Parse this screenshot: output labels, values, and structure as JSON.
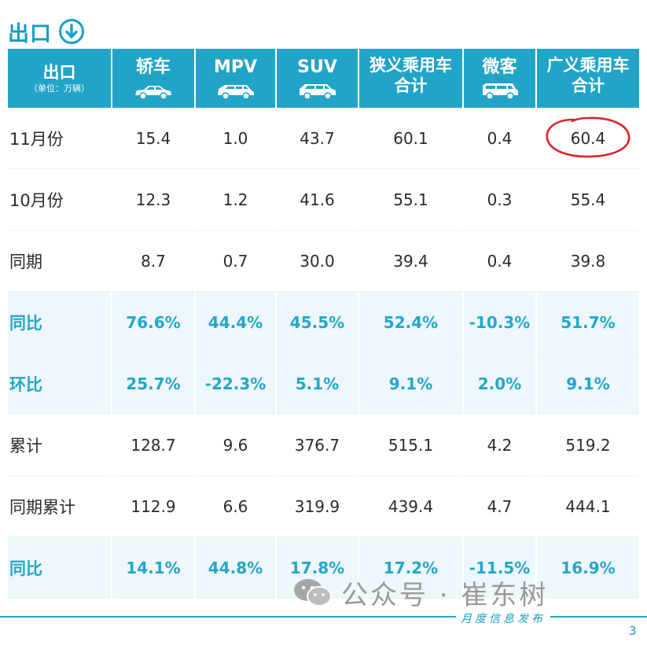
{
  "title": "出口",
  "table": {
    "header": {
      "corner_label": "出口",
      "corner_unit": "（单位：万辆）",
      "columns": [
        {
          "label": "轿车",
          "icon": "sedan-icon"
        },
        {
          "label": "MPV",
          "icon": "mpv-icon"
        },
        {
          "label": "SUV",
          "icon": "suv-icon"
        },
        {
          "label": "狭义乘用车\n合计",
          "icon": ""
        },
        {
          "label": "微客",
          "icon": "minivan-icon"
        },
        {
          "label": "广义乘用车\n合计",
          "icon": ""
        }
      ]
    },
    "rows": [
      {
        "label": "11月份",
        "values": [
          "15.4",
          "1.0",
          "43.7",
          "60.1",
          "0.4",
          "60.4"
        ]
      },
      {
        "label": "10月份",
        "values": [
          "12.3",
          "1.2",
          "41.6",
          "55.1",
          "0.3",
          "55.4"
        ]
      },
      {
        "label": "同期",
        "values": [
          "8.7",
          "0.7",
          "30.0",
          "39.4",
          "0.4",
          "39.8"
        ]
      },
      {
        "label": "同比",
        "values": [
          "76.6%",
          "44.4%",
          "45.5%",
          "52.4%",
          "-10.3%",
          "51.7%"
        ]
      },
      {
        "label": "环比",
        "values": [
          "25.7%",
          "-22.3%",
          "5.1%",
          "9.1%",
          "2.0%",
          "9.1%"
        ]
      },
      {
        "label": "累计",
        "values": [
          "128.7",
          "9.6",
          "376.7",
          "515.1",
          "4.2",
          "519.2"
        ]
      },
      {
        "label": "同期累计",
        "values": [
          "112.9",
          "6.6",
          "319.9",
          "439.4",
          "4.7",
          "444.1"
        ]
      },
      {
        "label": "同比",
        "values": [
          "14.1%",
          "44.8%",
          "17.8%",
          "17.2%",
          "-11.5%",
          "16.9%"
        ]
      }
    ]
  },
  "watermark": "公众号 · 崔东树",
  "footer_subtitle": "月度信息发布",
  "page_number": "3",
  "colors": {
    "accent": "#22a4c8",
    "highlight_text": "#24a6cc",
    "annotation": "#d9252a"
  }
}
